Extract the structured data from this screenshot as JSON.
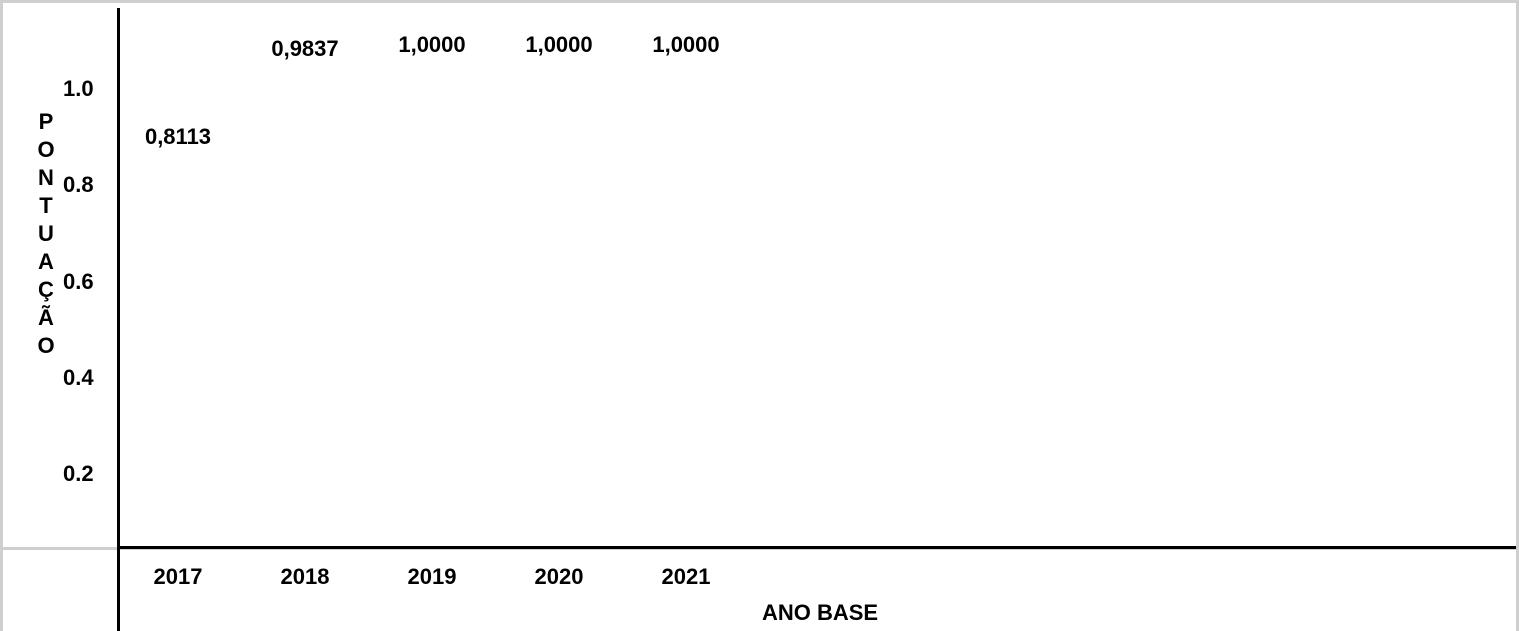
{
  "chart_data": {
    "type": "bar",
    "categories": [
      "2017",
      "2018",
      "2019",
      "2020",
      "2021"
    ],
    "values": [
      0.8113,
      0.9837,
      1.0,
      1.0,
      1.0
    ],
    "data_labels": [
      "0,8113",
      "0,9837",
      "1,0000",
      "1,0000",
      "1,0000"
    ],
    "title": "",
    "xlabel": "ANO BASE",
    "ylabel": "PONTUAÇÃO",
    "yticks": [
      "1.0",
      "0.8",
      "0.6",
      "0.4",
      "0.2"
    ],
    "ytick_values": [
      1.0,
      0.8,
      0.6,
      0.4,
      0.2
    ],
    "ylim": [
      0,
      1.0
    ],
    "grid": false,
    "legend": "none",
    "bar_color": "#ffffff",
    "text_color": "#000000",
    "border_color": "#cfcfcf"
  }
}
